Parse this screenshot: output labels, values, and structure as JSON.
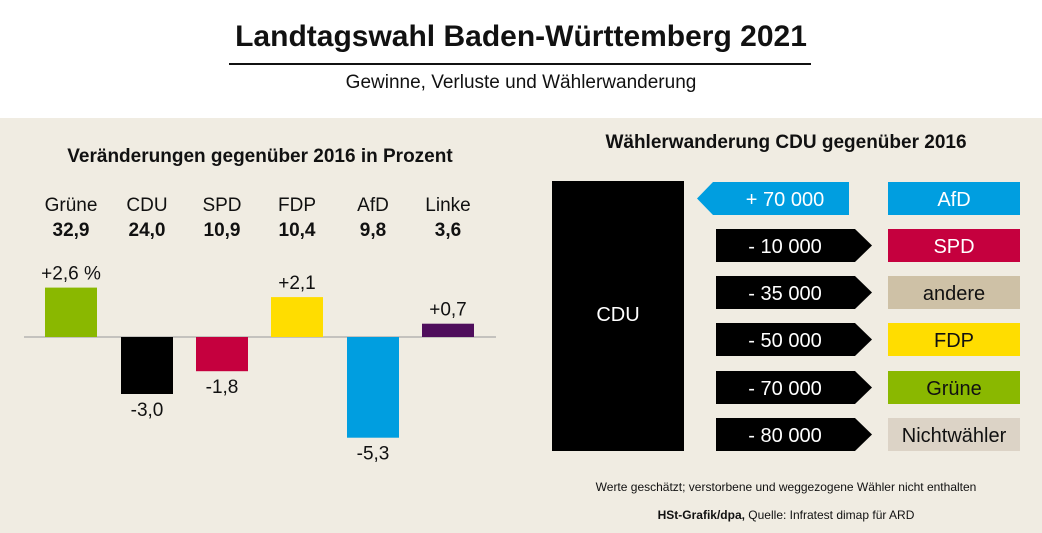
{
  "header": {
    "title": "Landtagswahl Baden-Württemberg 2021",
    "subtitle": "Gewinne, Verluste und Wählerwanderung"
  },
  "chart_data": [
    {
      "type": "bar",
      "title": "Veränderungen gegenüber 2016 in Prozent",
      "categories": [
        "Grüne",
        "CDU",
        "SPD",
        "FDP",
        "AfD",
        "Linke"
      ],
      "results": [
        "32,9",
        "24,0",
        "10,9",
        "10,4",
        "9,8",
        "3,6"
      ],
      "values": [
        2.6,
        -3.0,
        -1.8,
        2.1,
        -5.3,
        0.7
      ],
      "value_labels": [
        "+2,6 %",
        "-3,0",
        "-1,8",
        "+2,1",
        "-5,3",
        "+0,7"
      ],
      "colors": [
        "#8ab800",
        "#000000",
        "#c5003e",
        "#ffdd00",
        "#009ee0",
        "#4f0e5c"
      ],
      "grid": false
    },
    {
      "type": "flow",
      "title": "Wählerwanderung CDU gegenüber 2016",
      "source": "CDU",
      "flows": [
        {
          "party": "AfD",
          "value": 70000,
          "label": "+ 70 000",
          "color": "#009ee0",
          "text_color": "#ffffff"
        },
        {
          "party": "SPD",
          "value": -10000,
          "label": "- 10 000",
          "color": "#c5003e",
          "text_color": "#ffffff"
        },
        {
          "party": "andere",
          "value": -35000,
          "label": "- 35 000",
          "color": "#cec1a6",
          "text_color": "#111111"
        },
        {
          "party": "FDP",
          "value": -50000,
          "label": "- 50 000",
          "color": "#ffdd00",
          "text_color": "#111111"
        },
        {
          "party": "Grüne",
          "value": -70000,
          "label": "- 70 000",
          "color": "#8ab800",
          "text_color": "#111111"
        },
        {
          "party": "Nichtwähler",
          "value": -80000,
          "label": "- 80 000",
          "color": "#dcd3c6",
          "text_color": "#111111"
        }
      ]
    }
  ],
  "footer": {
    "note": "Werte geschätzt; verstorbene und weggezogene Wähler nicht enthalten",
    "credit": "HSt-Grafik/dpa,",
    "source": " Quelle: Infratest dimap für ARD"
  }
}
